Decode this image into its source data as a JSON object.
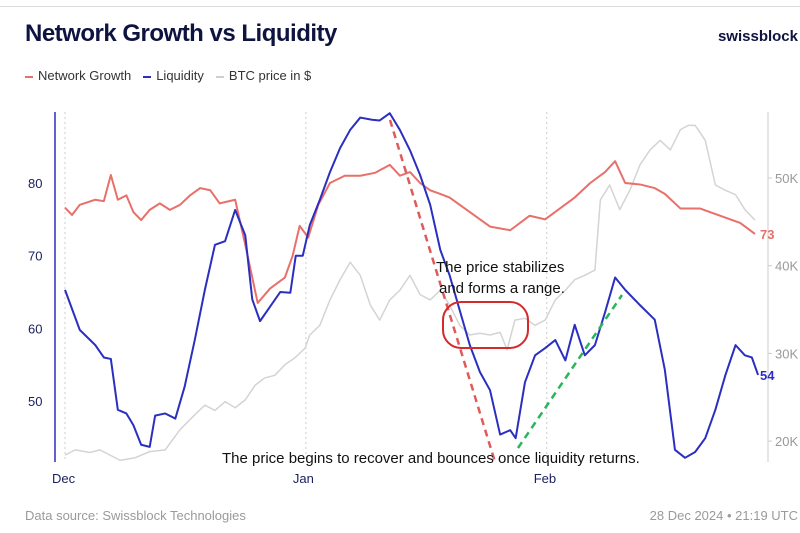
{
  "header": {
    "title": "Network Growth vs Liquidity",
    "brand": "swissblock"
  },
  "footer": {
    "source": "Data source: Swissblock Technologies",
    "timestamp": "28 Dec 2024 • 21:19 UTC"
  },
  "colors": {
    "network": "#e8706a",
    "liquidity": "#2a2fbf",
    "btc": "#d4d4d4",
    "red_annot": "#e05a5a",
    "green_annot": "#2ab55a"
  },
  "annotations": {
    "range_l1": "The price stabilizes",
    "range_l2": "and forms a range.",
    "recover": "The price begins to recover and bounces once liquidity returns."
  },
  "chart_data": {
    "type": "line",
    "title": "Network Growth vs Liquidity",
    "xlabel": "",
    "x_ticks": [
      {
        "day": 0,
        "label": "Dec"
      },
      {
        "day": 31,
        "label": "Jan"
      },
      {
        "day": 62,
        "label": "Feb"
      }
    ],
    "y_left": {
      "ticks": [
        50,
        60,
        70,
        80
      ],
      "range": [
        42,
        92
      ]
    },
    "y_right": {
      "ticks": [
        20,
        30,
        40,
        50
      ],
      "tick_labels": [
        "20K",
        "30K",
        "40K",
        "50K"
      ],
      "range": [
        17,
        58
      ]
    },
    "legend": [
      "Network Growth",
      "Liquidity",
      "BTC price in $"
    ],
    "legend_position": "top-left",
    "end_labels": {
      "network": "73",
      "liquidity": "54"
    },
    "series": [
      {
        "name": "Network Growth",
        "axis": "left",
        "points": [
          [
            0,
            76.6
          ],
          [
            0.9,
            75.6
          ],
          [
            1.9,
            77
          ],
          [
            3.9,
            77.7
          ],
          [
            5,
            77.5
          ],
          [
            5.9,
            81.1
          ],
          [
            6.8,
            77.7
          ],
          [
            7.9,
            78.3
          ],
          [
            8.8,
            76
          ],
          [
            9.8,
            74.9
          ],
          [
            10.9,
            76.3
          ],
          [
            12.2,
            77.2
          ],
          [
            13.5,
            76.3
          ],
          [
            14.8,
            77
          ],
          [
            16.1,
            78.3
          ],
          [
            17.4,
            79.3
          ],
          [
            18.7,
            79
          ],
          [
            19.9,
            77.2
          ],
          [
            21.9,
            77.7
          ],
          [
            23.2,
            71.5
          ],
          [
            24.8,
            63.5
          ],
          [
            26.4,
            65.5
          ],
          [
            28.3,
            67
          ],
          [
            29.3,
            70
          ],
          [
            30.2,
            74.1
          ],
          [
            31.3,
            72.5
          ],
          [
            32.6,
            77
          ],
          [
            34.1,
            80
          ],
          [
            36,
            81
          ],
          [
            38,
            81
          ],
          [
            39.9,
            81.4
          ],
          [
            41.8,
            82.5
          ],
          [
            43.1,
            81
          ],
          [
            44.4,
            81.5
          ],
          [
            45.7,
            80
          ],
          [
            47,
            79
          ],
          [
            48.3,
            78.5
          ],
          [
            49.5,
            78
          ],
          [
            52.1,
            76
          ],
          [
            54.7,
            74
          ],
          [
            57.3,
            73.5
          ],
          [
            59.8,
            75.5
          ],
          [
            61.8,
            75
          ],
          [
            63.7,
            76.5
          ],
          [
            65.6,
            78
          ],
          [
            67.6,
            80
          ],
          [
            69.5,
            81.5
          ],
          [
            70.8,
            83
          ],
          [
            72.1,
            80
          ],
          [
            74,
            79.8
          ],
          [
            75.9,
            79.3
          ],
          [
            77.2,
            78.5
          ],
          [
            79.2,
            76.5
          ],
          [
            81.7,
            76.5
          ],
          [
            84.3,
            75.5
          ],
          [
            86.9,
            74.5
          ],
          [
            88.8,
            73
          ]
        ]
      },
      {
        "name": "Liquidity",
        "axis": "left",
        "points": [
          [
            0,
            65.3
          ],
          [
            1.9,
            59.8
          ],
          [
            3.9,
            57.7
          ],
          [
            5,
            56
          ],
          [
            5.9,
            55.8
          ],
          [
            6.8,
            48.8
          ],
          [
            7.9,
            48.3
          ],
          [
            8.8,
            46.7
          ],
          [
            9.8,
            44
          ],
          [
            10.9,
            43.7
          ],
          [
            11.6,
            48
          ],
          [
            12.9,
            48.3
          ],
          [
            14.2,
            47.6
          ],
          [
            15.4,
            52
          ],
          [
            16.7,
            58.4
          ],
          [
            18,
            65.3
          ],
          [
            19.3,
            71.5
          ],
          [
            20.6,
            72
          ],
          [
            21.9,
            76.3
          ],
          [
            23.2,
            72.8
          ],
          [
            24.1,
            64
          ],
          [
            25.1,
            61
          ],
          [
            26.4,
            63
          ],
          [
            27.7,
            65
          ],
          [
            29,
            64.9
          ],
          [
            29.7,
            70
          ],
          [
            30.6,
            70
          ],
          [
            31.5,
            74.2
          ],
          [
            32.8,
            77.7
          ],
          [
            34.1,
            81.5
          ],
          [
            35.4,
            84.8
          ],
          [
            36.7,
            87.3
          ],
          [
            38,
            89
          ],
          [
            39.5,
            88.7
          ],
          [
            40.5,
            88.6
          ],
          [
            41.8,
            89.6
          ],
          [
            43.1,
            87.3
          ],
          [
            44.4,
            84.5
          ],
          [
            45.7,
            81.1
          ],
          [
            47,
            77
          ],
          [
            48.3,
            70.8
          ],
          [
            49.5,
            67.3
          ],
          [
            50.8,
            62.5
          ],
          [
            52.1,
            57.7
          ],
          [
            53.4,
            54
          ],
          [
            54.7,
            51.5
          ],
          [
            56,
            45.4
          ],
          [
            57.3,
            46
          ],
          [
            58,
            44.9
          ],
          [
            59.2,
            52.6
          ],
          [
            60.5,
            56.3
          ],
          [
            61.8,
            57.3
          ],
          [
            63.1,
            58.4
          ],
          [
            64.4,
            55.6
          ],
          [
            65.6,
            60.5
          ],
          [
            66.9,
            56.3
          ],
          [
            68.2,
            57.7
          ],
          [
            69.5,
            62.2
          ],
          [
            70.8,
            67
          ],
          [
            72.1,
            65.3
          ],
          [
            74,
            63.2
          ],
          [
            75.9,
            61.2
          ],
          [
            77.2,
            54.3
          ],
          [
            78.5,
            43.3
          ],
          [
            79.8,
            42.2
          ],
          [
            81.1,
            43
          ],
          [
            82.4,
            44.9
          ],
          [
            83.7,
            48.8
          ],
          [
            85,
            53.6
          ],
          [
            86.3,
            57.7
          ],
          [
            87.5,
            56.3
          ],
          [
            88.4,
            56
          ],
          [
            89.2,
            53.6
          ]
        ]
      },
      {
        "name": "BTC price in $",
        "axis": "right",
        "unit": "K",
        "points": [
          [
            0,
            18.4
          ],
          [
            1.3,
            19
          ],
          [
            3.2,
            18.7
          ],
          [
            4.5,
            19
          ],
          [
            5.8,
            18.4
          ],
          [
            7.1,
            17.8
          ],
          [
            9,
            18.1
          ],
          [
            10.9,
            18.8
          ],
          [
            12.9,
            19
          ],
          [
            14.8,
            21.3
          ],
          [
            16.7,
            23
          ],
          [
            18,
            24.1
          ],
          [
            19.3,
            23.5
          ],
          [
            20.6,
            24.5
          ],
          [
            21.9,
            23.8
          ],
          [
            23.2,
            24.7
          ],
          [
            24.5,
            26.4
          ],
          [
            25.7,
            27.2
          ],
          [
            27,
            27.5
          ],
          [
            28.3,
            28.7
          ],
          [
            29.6,
            29.5
          ],
          [
            30.9,
            30.6
          ],
          [
            31.5,
            32.1
          ],
          [
            32.8,
            33.2
          ],
          [
            34.1,
            36.1
          ],
          [
            35.4,
            38.4
          ],
          [
            36.7,
            40.4
          ],
          [
            38,
            38.9
          ],
          [
            39.3,
            35.5
          ],
          [
            40.5,
            33.8
          ],
          [
            41.8,
            36.1
          ],
          [
            43.1,
            37.2
          ],
          [
            44.4,
            38.9
          ],
          [
            45.7,
            36.7
          ],
          [
            47,
            36.1
          ],
          [
            48.3,
            37.2
          ],
          [
            49.5,
            35.5
          ],
          [
            50.8,
            33.2
          ],
          [
            52.1,
            32.1
          ],
          [
            53.4,
            32.3
          ],
          [
            54.7,
            32.1
          ],
          [
            56,
            32.4
          ],
          [
            56.9,
            30.4
          ],
          [
            57.9,
            33.8
          ],
          [
            59.2,
            34
          ],
          [
            60.5,
            33.2
          ],
          [
            61.8,
            33.8
          ],
          [
            63.1,
            36.1
          ],
          [
            64.4,
            37.2
          ],
          [
            65.6,
            38.4
          ],
          [
            66.9,
            38.9
          ],
          [
            68.2,
            39.5
          ],
          [
            68.9,
            47.5
          ],
          [
            70.1,
            49.2
          ],
          [
            71.4,
            46.4
          ],
          [
            72.7,
            48.6
          ],
          [
            74,
            51.5
          ],
          [
            75.3,
            53.2
          ],
          [
            76.6,
            54.3
          ],
          [
            77.9,
            53.2
          ],
          [
            79.2,
            55.5
          ],
          [
            80.2,
            56
          ],
          [
            81.1,
            56
          ],
          [
            82.4,
            54.3
          ],
          [
            83.7,
            49.2
          ],
          [
            85,
            48.6
          ],
          [
            86.3,
            48.1
          ],
          [
            87.5,
            46.4
          ],
          [
            88.8,
            45.2
          ]
        ]
      }
    ]
  }
}
